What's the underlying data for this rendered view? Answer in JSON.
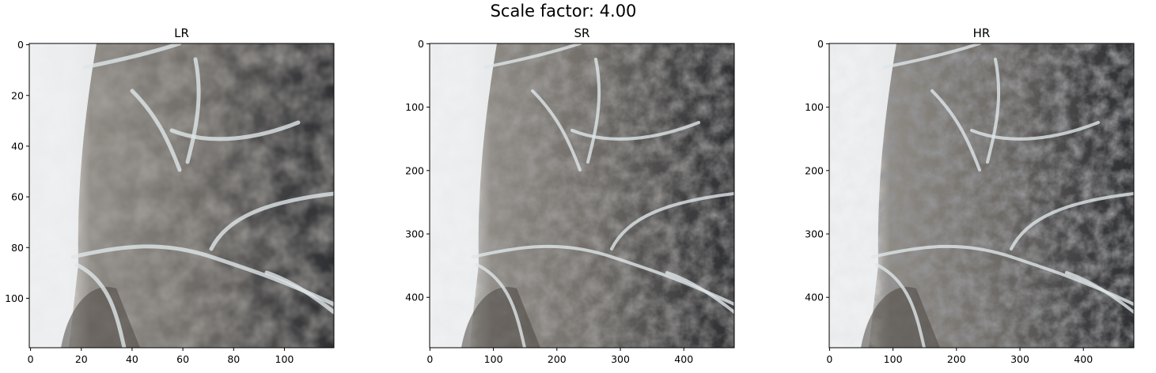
{
  "figure_title": "Scale factor: 4.00",
  "chart_data": [
    {
      "type": "image",
      "title": "LR",
      "xlim": [
        -0.5,
        119.5
      ],
      "ylim": [
        119.5,
        -0.5
      ],
      "xticks": [
        0,
        20,
        40,
        60,
        80,
        100
      ],
      "yticks": [
        0,
        20,
        40,
        60,
        80,
        100
      ],
      "xtick_labels": [
        "0",
        "20",
        "40",
        "60",
        "80",
        "100"
      ],
      "ytick_labels": [
        "0",
        "20",
        "40",
        "60",
        "80",
        "100"
      ]
    },
    {
      "type": "image",
      "title": "SR",
      "xlim": [
        -0.5,
        479.5
      ],
      "ylim": [
        479.5,
        -0.5
      ],
      "xticks": [
        0,
        100,
        200,
        300,
        400
      ],
      "yticks": [
        0,
        100,
        200,
        300,
        400
      ],
      "xtick_labels": [
        "0",
        "100",
        "200",
        "300",
        "400"
      ],
      "ytick_labels": [
        "0",
        "100",
        "200",
        "300",
        "400"
      ]
    },
    {
      "type": "image",
      "title": "HR",
      "xlim": [
        -0.5,
        479.5
      ],
      "ylim": [
        479.5,
        -0.5
      ],
      "xticks": [
        0,
        100,
        200,
        300,
        400
      ],
      "yticks": [
        0,
        100,
        200,
        300,
        400
      ],
      "xtick_labels": [
        "0",
        "100",
        "200",
        "300",
        "400"
      ],
      "ytick_labels": [
        "0",
        "100",
        "200",
        "300",
        "400"
      ]
    }
  ]
}
